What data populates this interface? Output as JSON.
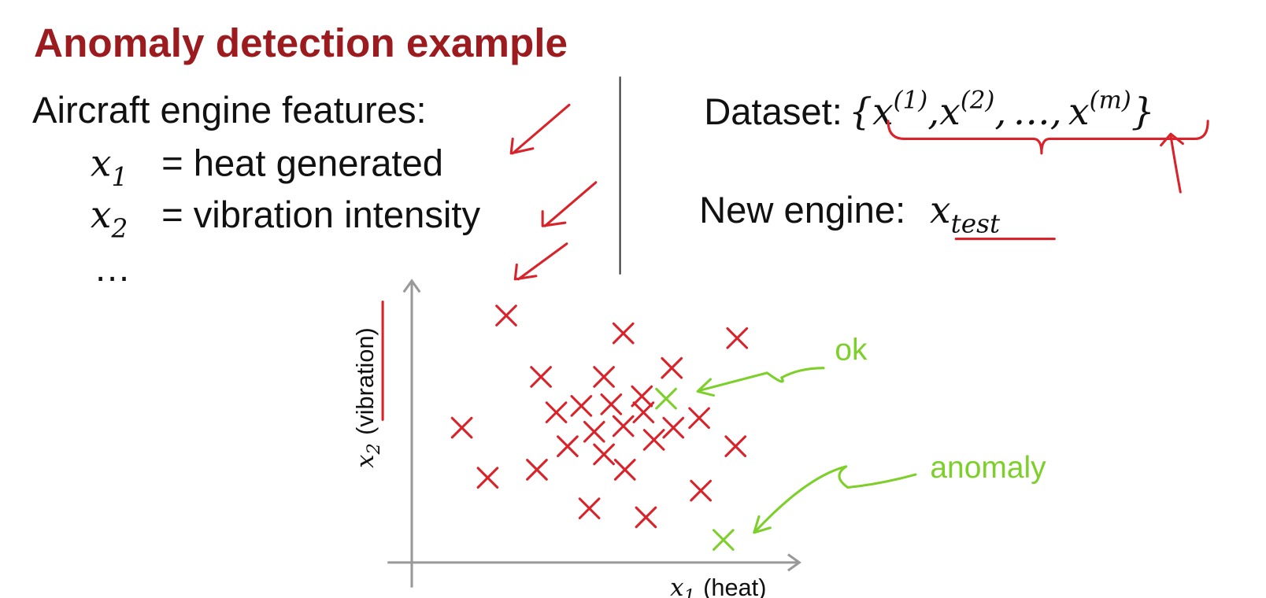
{
  "header": {
    "title": "Anomaly detection example"
  },
  "features": {
    "heading": "Aircraft engine features:",
    "items": [
      {
        "symbol": "x",
        "subscript": "1",
        "text": "= heat generated"
      },
      {
        "symbol": "x",
        "subscript": "2",
        "text": "= vibration intensity"
      }
    ],
    "more": "…"
  },
  "dataset": {
    "label": "Dataset:",
    "open": "{",
    "items": [
      {
        "symbol": "x",
        "superscript": "(1)"
      },
      {
        "symbol": "x",
        "superscript": "(2)"
      },
      {
        "symbol": "x",
        "superscript": "(m)"
      }
    ],
    "separator": ",",
    "ellipsis": "…",
    "close": "}"
  },
  "new_engine": {
    "label": "New engine:",
    "symbol": "x",
    "subscript": "test"
  },
  "plot": {
    "y_axis": {
      "symbol": "x",
      "subscript": "2",
      "label": "(vibration)"
    },
    "x_axis": {
      "symbol": "x",
      "subscript": "1",
      "label": "(heat)"
    },
    "annotations": [
      "ok",
      "anomaly"
    ]
  }
}
